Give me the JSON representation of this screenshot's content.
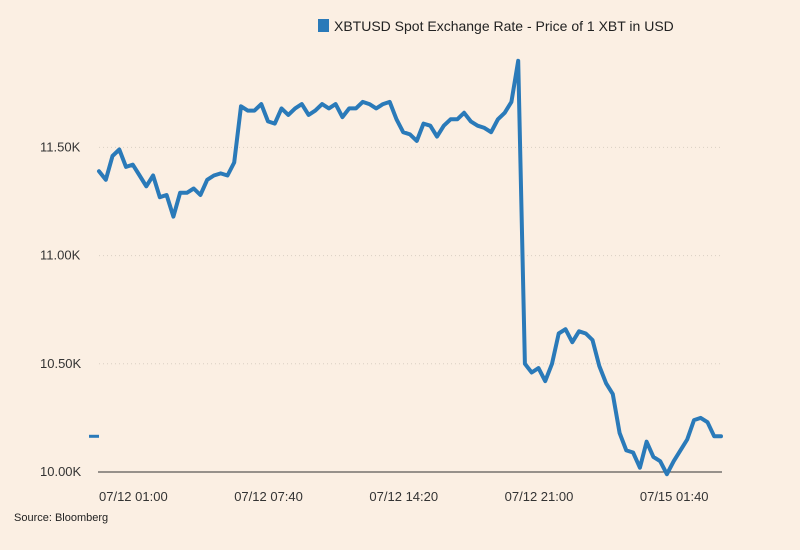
{
  "chart_data": {
    "type": "line",
    "title": "",
    "source": "Source: Bloomberg",
    "legend": {
      "placement": "top-right"
    },
    "grid": {
      "horizontal": true,
      "style": "dotted"
    },
    "ylim": [
      10000,
      11950
    ],
    "y_ticks": [
      {
        "value": 10000,
        "label": "10.00K"
      },
      {
        "value": 10500,
        "label": "10.50K"
      },
      {
        "value": 11000,
        "label": "11.00K"
      },
      {
        "value": 11500,
        "label": "11.50K"
      }
    ],
    "x_ticks": [
      {
        "index": 0,
        "label": "07/12 01:00"
      },
      {
        "index": 20,
        "label": "07/12 07:40"
      },
      {
        "index": 40,
        "label": "07/12 14:20"
      },
      {
        "index": 60,
        "label": "07/12 21:00"
      },
      {
        "index": 80,
        "label": "07/15 01:40"
      }
    ],
    "last_value_marker": 10165,
    "colors": {
      "series": "#2a7ab9",
      "background": "#fbefe3",
      "axis": "#333333",
      "grid": "#d9cfc3"
    },
    "series": [
      {
        "name": "XBTUSD Spot Exchange Rate - Price of 1 XBT in USD",
        "values": [
          11390,
          11350,
          11460,
          11490,
          11410,
          11420,
          11370,
          11320,
          11370,
          11270,
          11280,
          11180,
          11290,
          11290,
          11310,
          11280,
          11350,
          11370,
          11380,
          11370,
          11430,
          11690,
          11670,
          11670,
          11700,
          11620,
          11610,
          11680,
          11650,
          11680,
          11700,
          11650,
          11670,
          11700,
          11680,
          11700,
          11640,
          11680,
          11680,
          11710,
          11700,
          11680,
          11700,
          11710,
          11630,
          11570,
          11560,
          11530,
          11610,
          11600,
          11550,
          11600,
          11630,
          11630,
          11660,
          11620,
          11600,
          11590,
          11570,
          11630,
          11660,
          11710,
          11900,
          10500,
          10460,
          10480,
          10420,
          10500,
          10640,
          10660,
          10600,
          10650,
          10640,
          10610,
          10490,
          10410,
          10360,
          10180,
          10100,
          10090,
          10020,
          10140,
          10070,
          10050,
          9990,
          10050,
          10100,
          10150,
          10240,
          10250,
          10230,
          10165,
          10165
        ]
      }
    ]
  }
}
